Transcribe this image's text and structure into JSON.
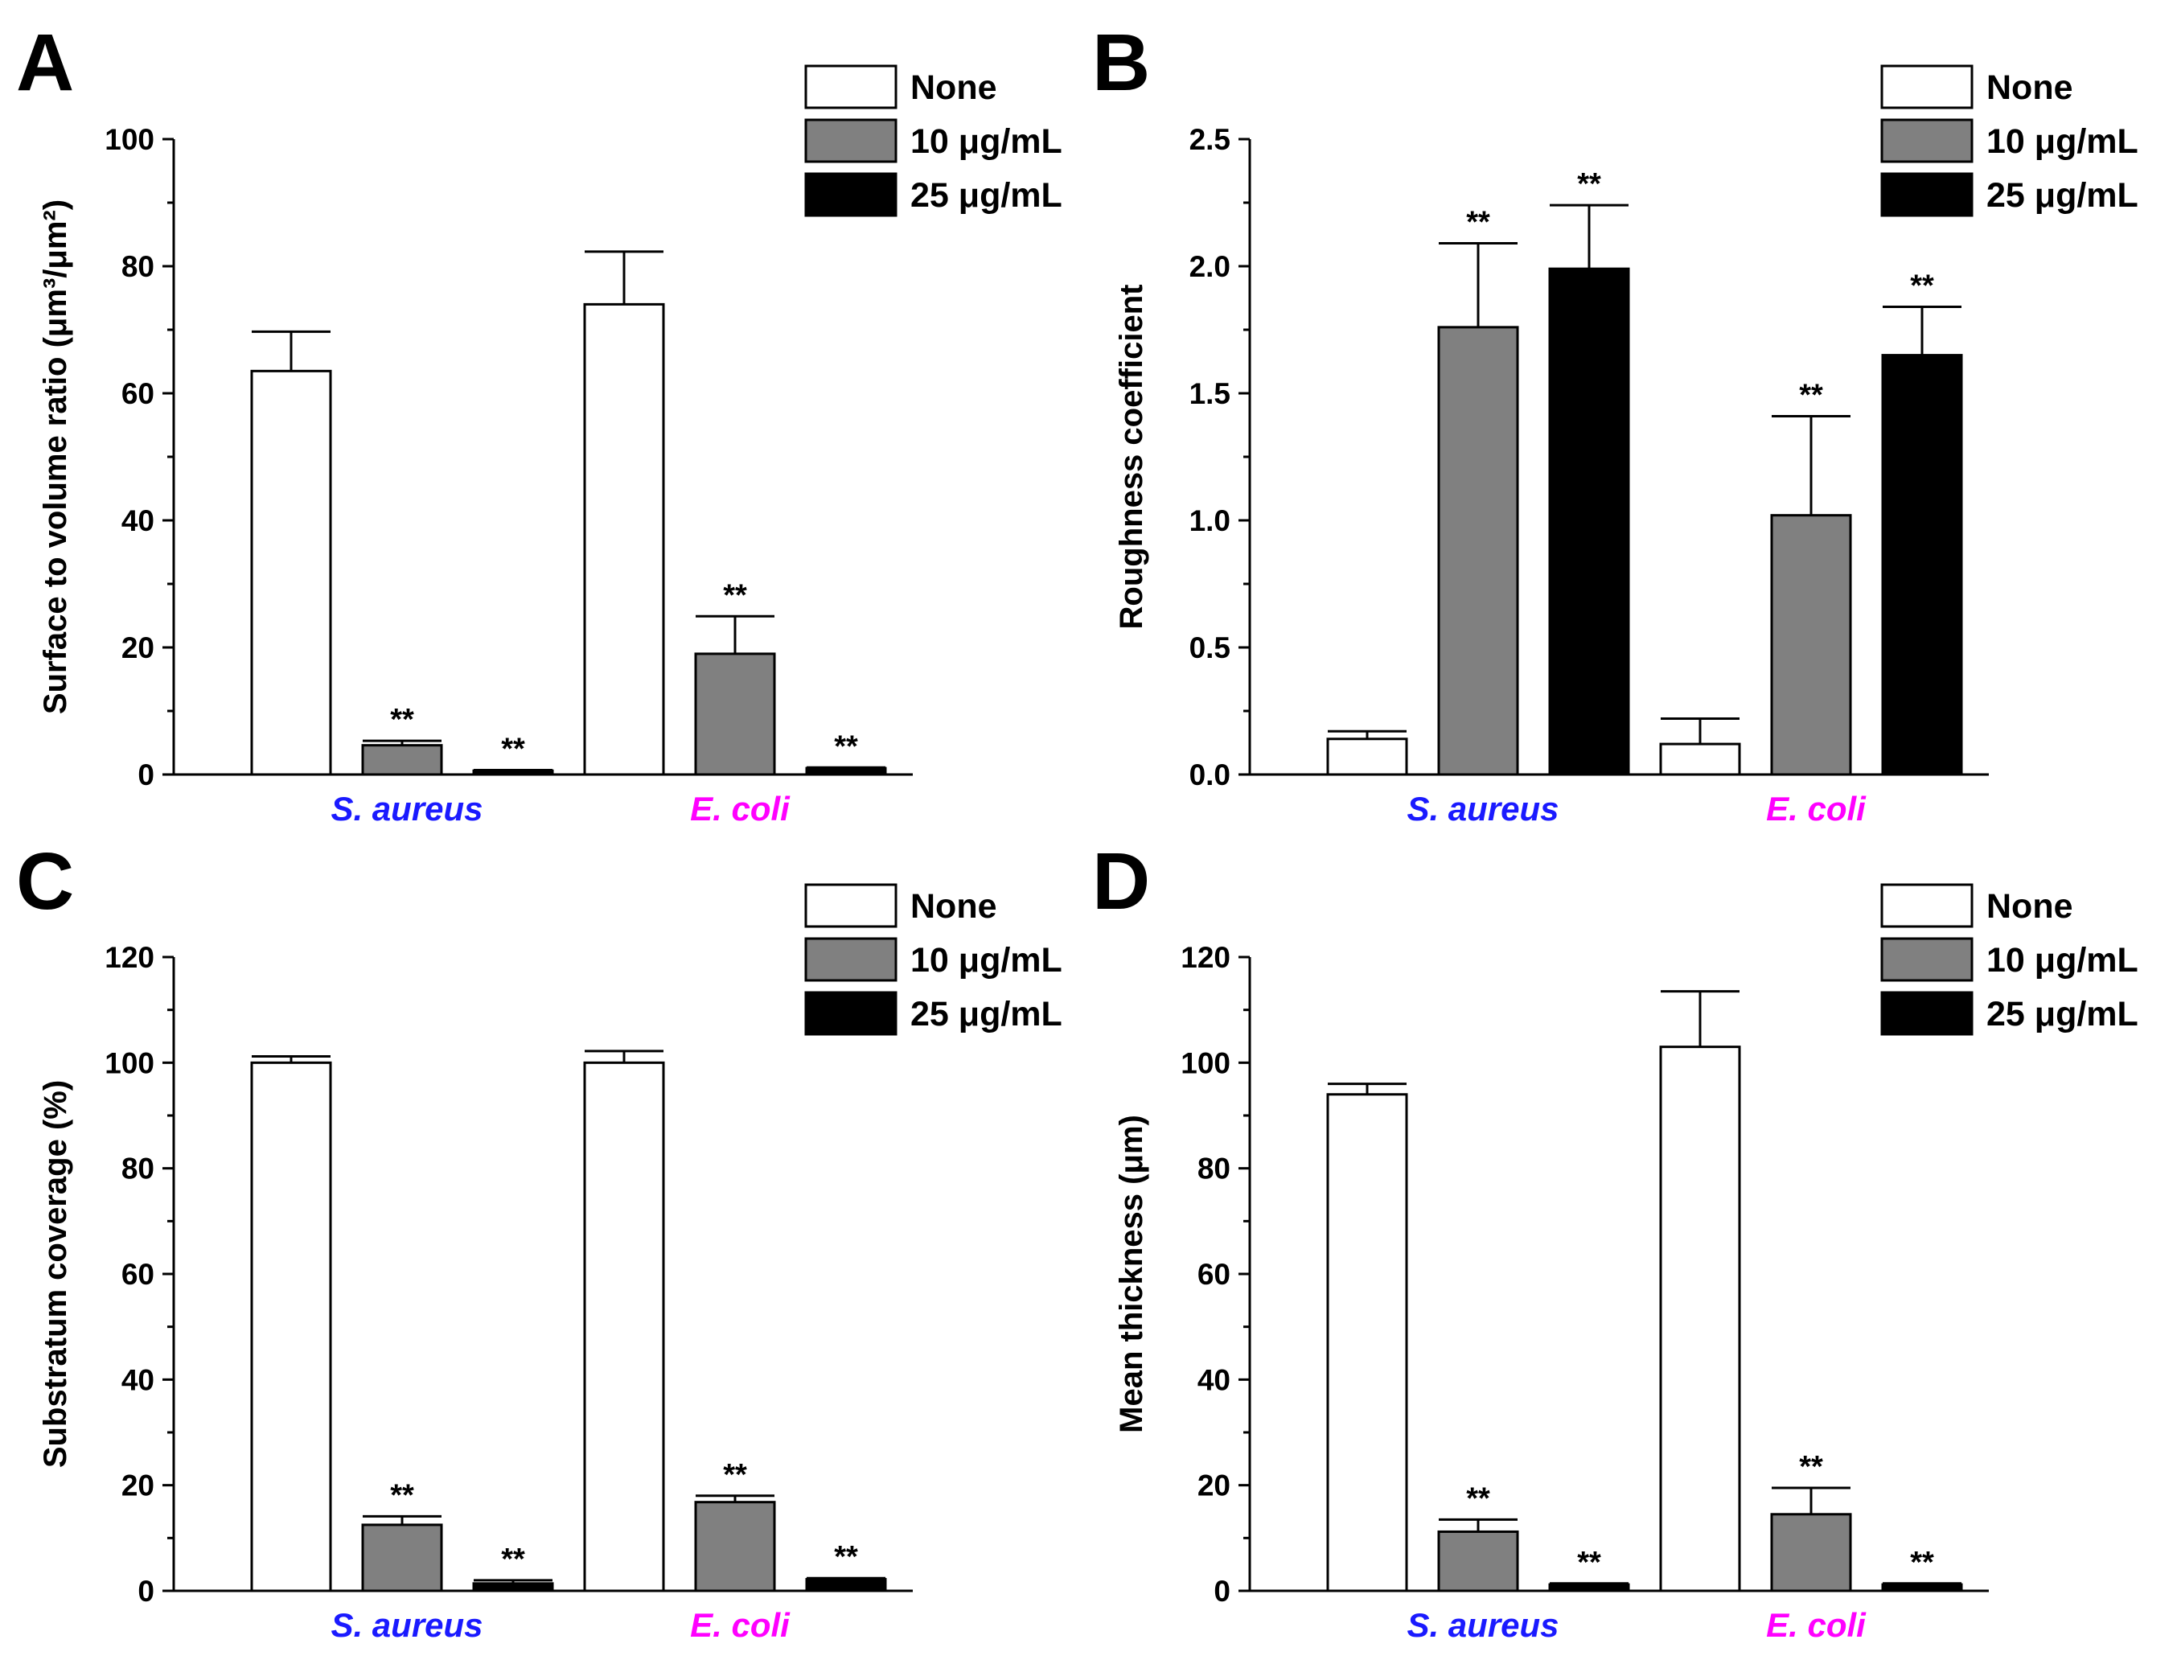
{
  "colors": {
    "none": "#ffffff",
    "mid": "#808080",
    "high": "#000000",
    "s_aureus": "#1a1aff",
    "e_coli": "#ff00ff"
  },
  "legend": [
    "None",
    "10 μg/mL",
    "25 μg/mL"
  ],
  "chart_data": [
    {
      "panel": "A",
      "type": "bar",
      "ylabel": "Surface to volume ratio (μm³/μm²)",
      "ylim": [
        0,
        100
      ],
      "yticks": [
        0,
        20,
        40,
        60,
        80,
        100
      ],
      "categories": [
        "S. aureus",
        "E. coli"
      ],
      "category_colors": [
        "#1a1aff",
        "#ff00ff"
      ],
      "series": [
        {
          "name": "None",
          "values": [
            63.5,
            74
          ],
          "errors": [
            6.2,
            8.3
          ],
          "sig": [
            "",
            ""
          ]
        },
        {
          "name": "10 μg/mL",
          "values": [
            4.6,
            19
          ],
          "errors": [
            0.7,
            5.9
          ],
          "sig": [
            "**",
            "**"
          ]
        },
        {
          "name": "25 μg/mL",
          "values": [
            0.6,
            1.0
          ],
          "errors": [
            0.1,
            0.1
          ],
          "sig": [
            "**",
            "**"
          ]
        }
      ]
    },
    {
      "panel": "B",
      "type": "bar",
      "ylabel": "Roughness coefficient",
      "ylim": [
        0,
        2.5
      ],
      "yticks": [
        "0.0",
        "0.5",
        "1.0",
        "1.5",
        "2.0",
        "2.5"
      ],
      "categories": [
        "S. aureus",
        "E. coli"
      ],
      "category_colors": [
        "#1a1aff",
        "#ff00ff"
      ],
      "series": [
        {
          "name": "None",
          "values": [
            0.14,
            0.12
          ],
          "errors": [
            0.03,
            0.1
          ],
          "sig": [
            "",
            ""
          ]
        },
        {
          "name": "10 μg/mL",
          "values": [
            1.76,
            1.02
          ],
          "errors": [
            0.33,
            0.39
          ],
          "sig": [
            "**",
            "**"
          ]
        },
        {
          "name": "25 μg/mL",
          "values": [
            1.99,
            1.65
          ],
          "errors": [
            0.25,
            0.19
          ],
          "sig": [
            "**",
            "**"
          ]
        }
      ]
    },
    {
      "panel": "C",
      "type": "bar",
      "ylabel": "Substratum coverage (%)",
      "ylim": [
        0,
        120
      ],
      "yticks": [
        0,
        20,
        40,
        60,
        80,
        100,
        120
      ],
      "categories": [
        "S. aureus",
        "E. coli"
      ],
      "category_colors": [
        "#1a1aff",
        "#ff00ff"
      ],
      "series": [
        {
          "name": "None",
          "values": [
            100,
            100
          ],
          "errors": [
            1.2,
            2.2
          ],
          "sig": [
            "",
            ""
          ]
        },
        {
          "name": "10 μg/mL",
          "values": [
            12.5,
            16.8
          ],
          "errors": [
            1.6,
            1.2
          ],
          "sig": [
            "**",
            "**"
          ]
        },
        {
          "name": "25 μg/mL",
          "values": [
            1.4,
            2.2
          ],
          "errors": [
            0.6,
            0.2
          ],
          "sig": [
            "**",
            "**"
          ]
        }
      ]
    },
    {
      "panel": "D",
      "type": "bar",
      "ylabel": "Mean thickness (μm)",
      "ylim": [
        0,
        120
      ],
      "yticks": [
        0,
        20,
        40,
        60,
        80,
        100,
        120
      ],
      "categories": [
        "S. aureus",
        "E. coli"
      ],
      "category_colors": [
        "#1a1aff",
        "#ff00ff"
      ],
      "series": [
        {
          "name": "None",
          "values": [
            94,
            103
          ],
          "errors": [
            2.0,
            10.5
          ],
          "sig": [
            "",
            ""
          ]
        },
        {
          "name": "10 μg/mL",
          "values": [
            11.2,
            14.5
          ],
          "errors": [
            2.3,
            5.0
          ],
          "sig": [
            "**",
            "**"
          ]
        },
        {
          "name": "25 μg/mL",
          "values": [
            1.2,
            1.2
          ],
          "errors": [
            0.2,
            0.2
          ],
          "sig": [
            "**",
            "**"
          ]
        }
      ]
    }
  ]
}
